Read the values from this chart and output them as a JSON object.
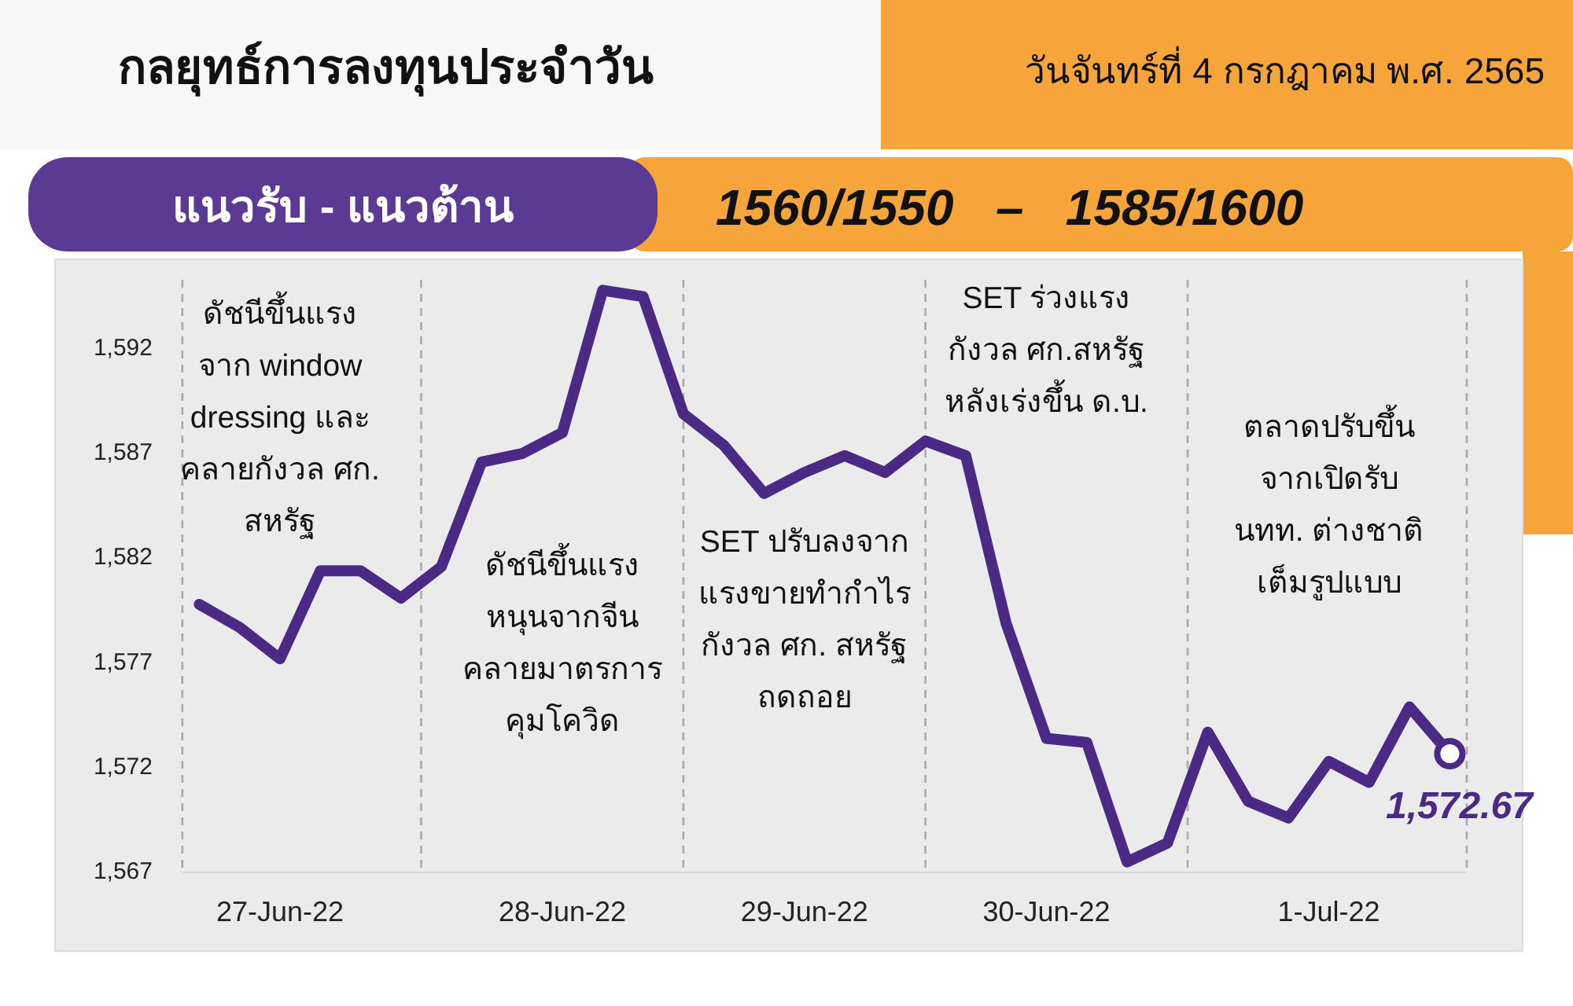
{
  "chart_data": {
    "type": "line",
    "title": "กลยุทธ์การลงทุนประจำวัน",
    "subtitle": "วันจันทร์ที่ 4 กรกฎาคม พ.ศ. 2565",
    "categories": [
      null,
      null,
      "27-Jun-22",
      null,
      null,
      null,
      null,
      null,
      null,
      "28-Jun-22",
      null,
      null,
      null,
      null,
      null,
      "29-Jun-22",
      null,
      null,
      null,
      null,
      null,
      "30-Jun-22",
      null,
      null,
      null,
      null,
      null,
      null,
      "1-Jul-22",
      null,
      null,
      null
    ],
    "series": [
      {
        "color": "#4b2a85",
        "values": [
          1579.8,
          1578.7,
          1577.2,
          1581.4,
          1581.4,
          1580.1,
          1581.6,
          1586.6,
          1587.0,
          1588.0,
          1594.8,
          1594.5,
          1588.9,
          1587.4,
          1585.1,
          1586.1,
          1586.9,
          1586.1,
          1587.6,
          1586.9,
          1578.9,
          1573.4,
          1573.2,
          1567.5,
          1568.4,
          1573.7,
          1570.4,
          1569.6,
          1572.3,
          1571.3,
          1574.9,
          1572.67
        ],
        "value_labels": [
          null,
          null,
          null,
          null,
          null,
          null,
          null,
          null,
          null,
          null,
          null,
          null,
          null,
          null,
          null,
          null,
          null,
          null,
          null,
          null,
          null,
          null,
          null,
          null,
          null,
          null,
          null,
          null,
          null,
          null,
          null,
          "1,572.67"
        ]
      }
    ],
    "ylim": [
      1567,
      1595.3
    ],
    "yticks": [
      {
        "value": 1567,
        "label": "1,567"
      },
      {
        "value": 1572,
        "label": "1,572"
      },
      {
        "value": 1577,
        "label": "1,577"
      },
      {
        "value": 1582,
        "label": "1,582"
      },
      {
        "value": 1587,
        "label": "1,587"
      },
      {
        "value": 1592,
        "label": "1,592"
      }
    ],
    "grid": "x",
    "marker": "none",
    "line_style": "solid",
    "annotations": [
      "แนวรับ - แนวต้าน",
      "1560/1550   –   1585/1600",
      "ดัชนีขึ้นแรง\nจาก window\ndressing และ\nคลายกังวล ศก.\nสหรัฐ",
      "ดัชนีขึ้นแรง\nหนุนจากจีน\nคลายมาตรการ\nคุมโควิด",
      "SET ปรับลงจาก\nแรงขายทำกำไร\nกังวล ศก. สหรัฐ\nถดถอย",
      "SET ร่วงแรง\nกังวล ศก.สหรัฐ\nหลังเร่งขึ้น ด.บ.",
      "ตลาดปรับขึ้น\nจากเปิดรับ\nนทท. ต่างชาติ\nเต็มรูปแบบ"
    ]
  }
}
